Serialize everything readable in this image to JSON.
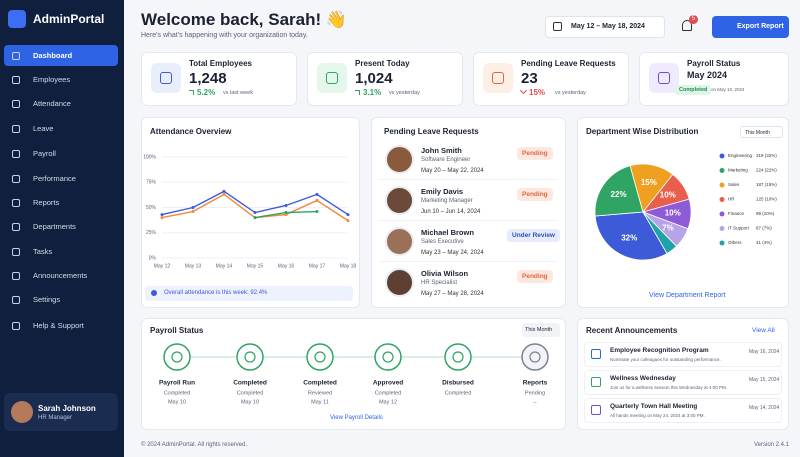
{
  "sidebar": {
    "brand": "AdminPortal",
    "nav": [
      "Dashboard",
      "Employees",
      "Attendance",
      "Leave",
      "Payroll",
      "Performance",
      "Reports",
      "Departments",
      "Tasks",
      "Announcements",
      "Settings",
      "Help & Support"
    ],
    "active": 0,
    "user": {
      "name": "Sarah Johnson",
      "role": "HR Manager"
    }
  },
  "header": {
    "title": "Welcome back, Sarah! 👋",
    "subtitle": "Here's what's happening with your organization today.",
    "date_range": "May 12 – May 18, 2024",
    "notifications": "5",
    "export": "Export Report"
  },
  "stats": [
    {
      "label": "Total Employees",
      "value": "1,248",
      "change": "5.2%",
      "compare": "vs last week",
      "trend": "up",
      "color": "#3d5bd9",
      "bg": "#e8eefc"
    },
    {
      "label": "Present Today",
      "value": "1,024",
      "change": "3.1%",
      "compare": "vs yesterday",
      "trend": "up",
      "color": "#2fa463",
      "bg": "#e5f6ec"
    },
    {
      "label": "Pending Leave Requests",
      "value": "23",
      "change": "15%",
      "compare": "vs yesterday",
      "trend": "down",
      "color": "#e8604c",
      "bg": "#fdeee6"
    },
    {
      "label": "Payroll Status",
      "value": "May 2024",
      "badge": "Completed",
      "compare": "on May 10, 2024",
      "color": "#6b4fd6",
      "bg": "#efeafd"
    }
  ],
  "attendance": {
    "title": "Attendance Overview",
    "categories": [
      "May 12",
      "May 13",
      "May 14",
      "May 15",
      "May 16",
      "May 17",
      "May 18"
    ],
    "ylim": [
      0,
      100
    ],
    "yticks": [
      {
        "value": 100,
        "label": "100%"
      },
      {
        "value": 75,
        "label": "75%"
      },
      {
        "value": 50,
        "label": "50%"
      },
      {
        "value": 25,
        "label": "25%"
      },
      {
        "value": 0,
        "label": "0%"
      }
    ],
    "series": [
      {
        "color": "#3d5bd9",
        "values": [
          43,
          50,
          66,
          45,
          52,
          63,
          43
        ]
      },
      {
        "color": "#f08a3c",
        "values": [
          40,
          46,
          63,
          40,
          43,
          57,
          37
        ]
      },
      {
        "color": "#2fa463",
        "values": [
          null,
          null,
          null,
          40,
          45,
          46,
          null
        ]
      }
    ],
    "note": "Overall attendance is this week: 92.4%"
  },
  "leave": {
    "title": "Pending Leave Requests",
    "items": [
      {
        "name": "John Smith",
        "role": "Software Engineer",
        "dates": "May 20 – May 22, 2024",
        "status": "Pending"
      },
      {
        "name": "Emily Davis",
        "role": "Marketing Manager",
        "dates": "Jun 10 – Jun 14, 2024",
        "status": "Pending"
      },
      {
        "name": "Michael Brown",
        "role": "Sales Executive",
        "dates": "May 23 – May 24, 2024",
        "status": "Under Review"
      },
      {
        "name": "Olivia Wilson",
        "role": "HR Specialist",
        "dates": "May 27 – May 28, 2024",
        "status": "Pending"
      }
    ]
  },
  "departments": {
    "title": "Department Wise Distribution",
    "filter": "This Month",
    "link": "View Department Report",
    "slices": [
      {
        "name": "Engineering",
        "value": 32,
        "value_label": "32%",
        "detail": "319 (32%)",
        "color": "#3d5bd9"
      },
      {
        "name": "Marketing",
        "value": 22,
        "value_label": "22%",
        "detail": "224 (22%)",
        "color": "#2fa463"
      },
      {
        "name": "Sales",
        "value": 15,
        "value_label": "15%",
        "detail": "187 (15%)",
        "color": "#f0a020"
      },
      {
        "name": "HR",
        "value": 10,
        "value_label": "10%",
        "detail": "125 (10%)",
        "color": "#e8604c"
      },
      {
        "name": "Finance",
        "value": 10,
        "value_label": "10%",
        "detail": "99 (10%)",
        "color": "#8e5bd6"
      },
      {
        "name": "IT Support",
        "value": 7,
        "value_label": "7%",
        "detail": "87 (7%)",
        "color": "#b7a4e8"
      },
      {
        "name": "Others",
        "value": 4,
        "value_label": "4%",
        "detail": "41 (4%)",
        "color": "#1fa2a8"
      }
    ]
  },
  "payroll": {
    "title": "Payroll Status",
    "filter": "This Month",
    "link": "View Payroll Details",
    "steps": [
      {
        "name": "Payroll Run",
        "status": "Completed",
        "date": "May 10"
      },
      {
        "name": "Completed",
        "status": "Completed",
        "date": "May 10"
      },
      {
        "name": "Completed",
        "status": "Reviewed",
        "date": "May 11"
      },
      {
        "name": "Approved",
        "status": "Completed",
        "date": "May 12"
      },
      {
        "name": "Disbursed",
        "status": "Completed",
        "date": ""
      },
      {
        "name": "Reports",
        "status": "Pending",
        "date": "–"
      }
    ]
  },
  "announcements": {
    "title": "Recent Announcements",
    "link": "View All",
    "items": [
      {
        "title": "Employee Recognition Program",
        "desc": "Nominate your colleagues for outstanding performance.",
        "date": "May 16, 2024"
      },
      {
        "title": "Wellness Wednesday",
        "desc": "Join us for a wellness session this Wednesday at 4:00 PM.",
        "date": "May 15, 2024"
      },
      {
        "title": "Quarterly Town Hall Meeting",
        "desc": "All hands meeting on May 24, 2024 at 3:00 PM.",
        "date": "May 14, 2024"
      }
    ]
  },
  "footer": {
    "copyright": "© 2024 AdminPortal. All rights reserved.",
    "version": "Version 2.4.1"
  }
}
